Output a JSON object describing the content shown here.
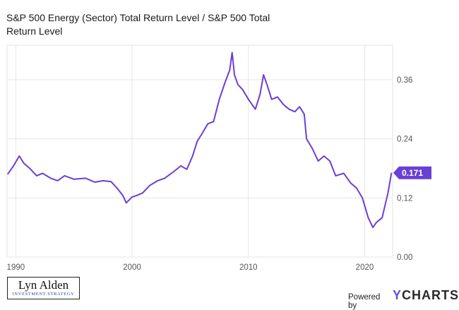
{
  "chart_data": {
    "type": "line",
    "title": "S&P 500 Energy (Sector) Total Return Level / S&P 500 Total Return Level",
    "x_ticks": [
      "1990",
      "2000",
      "2010",
      "2020"
    ],
    "y_ticks": [
      "0.00",
      "0.12",
      "0.24",
      "0.36"
    ],
    "ylim": [
      0,
      0.43
    ],
    "xlim": [
      1989.25,
      2022.4
    ],
    "grid": true,
    "series": [
      {
        "color": "#6a3fd4",
        "last_value_label": "0.171",
        "points": [
          [
            1989.3,
            0.168
          ],
          [
            1989.8,
            0.185
          ],
          [
            1990.3,
            0.205
          ],
          [
            1990.7,
            0.19
          ],
          [
            1991.2,
            0.18
          ],
          [
            1991.8,
            0.165
          ],
          [
            1992.3,
            0.17
          ],
          [
            1993.0,
            0.16
          ],
          [
            1993.6,
            0.155
          ],
          [
            1994.2,
            0.165
          ],
          [
            1995.0,
            0.158
          ],
          [
            1996.0,
            0.16
          ],
          [
            1996.8,
            0.152
          ],
          [
            1997.5,
            0.155
          ],
          [
            1998.2,
            0.153
          ],
          [
            1998.7,
            0.14
          ],
          [
            1999.2,
            0.125
          ],
          [
            1999.5,
            0.11
          ],
          [
            2000.0,
            0.122
          ],
          [
            2000.4,
            0.125
          ],
          [
            2000.9,
            0.13
          ],
          [
            2001.5,
            0.145
          ],
          [
            2002.2,
            0.155
          ],
          [
            2002.8,
            0.16
          ],
          [
            2003.5,
            0.172
          ],
          [
            2004.2,
            0.185
          ],
          [
            2004.7,
            0.178
          ],
          [
            2005.2,
            0.205
          ],
          [
            2005.6,
            0.235
          ],
          [
            2006.0,
            0.25
          ],
          [
            2006.5,
            0.27
          ],
          [
            2007.0,
            0.275
          ],
          [
            2007.5,
            0.32
          ],
          [
            2008.0,
            0.355
          ],
          [
            2008.4,
            0.38
          ],
          [
            2008.6,
            0.415
          ],
          [
            2008.8,
            0.37
          ],
          [
            2009.1,
            0.35
          ],
          [
            2009.5,
            0.34
          ],
          [
            2010.0,
            0.32
          ],
          [
            2010.6,
            0.3
          ],
          [
            2011.0,
            0.33
          ],
          [
            2011.3,
            0.37
          ],
          [
            2011.6,
            0.35
          ],
          [
            2012.0,
            0.32
          ],
          [
            2012.5,
            0.325
          ],
          [
            2013.0,
            0.31
          ],
          [
            2013.5,
            0.3
          ],
          [
            2014.0,
            0.295
          ],
          [
            2014.4,
            0.305
          ],
          [
            2014.8,
            0.29
          ],
          [
            2015.0,
            0.24
          ],
          [
            2015.5,
            0.22
          ],
          [
            2016.0,
            0.195
          ],
          [
            2016.5,
            0.205
          ],
          [
            2017.0,
            0.195
          ],
          [
            2017.5,
            0.165
          ],
          [
            2018.2,
            0.17
          ],
          [
            2018.8,
            0.15
          ],
          [
            2019.3,
            0.14
          ],
          [
            2019.8,
            0.12
          ],
          [
            2020.3,
            0.08
          ],
          [
            2020.7,
            0.06
          ],
          [
            2021.0,
            0.07
          ],
          [
            2021.5,
            0.08
          ],
          [
            2022.0,
            0.13
          ],
          [
            2022.3,
            0.171
          ]
        ]
      }
    ]
  },
  "branding": {
    "logo_name": "Lyn Alden",
    "logo_tagline": "INVESTMENT STRATEGY",
    "powered_by": "Powered by",
    "brand_y": "Y",
    "brand_rest": "CHARTS"
  }
}
